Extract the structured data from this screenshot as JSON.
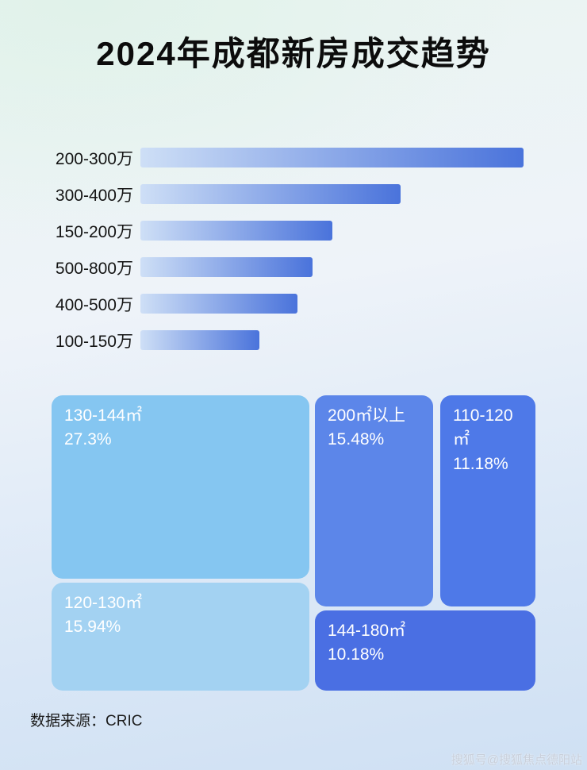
{
  "title": "2024年成都新房成交趋势",
  "footer": {
    "source": "数据来源：CRIC"
  },
  "watermark": "搜狐号@搜狐焦点德阳站",
  "chart_data": [
    {
      "type": "bar",
      "orientation": "horizontal",
      "categories": [
        "200-300万",
        "300-400万",
        "150-200万",
        "500-800万",
        "400-500万",
        "100-150万"
      ],
      "values": [
        100,
        68,
        50,
        45,
        41,
        31
      ],
      "value_scale": "relative bar length, longest bar = 100 (no numeric axis shown)",
      "bar_gradient": {
        "from": "#cedff6",
        "to": "#4a73db"
      },
      "legend": "none",
      "grid": "off"
    },
    {
      "type": "treemap",
      "blocks": [
        {
          "label": "130-144㎡",
          "pct": "27.3%",
          "value": 27.3,
          "color": "#85c6f1"
        },
        {
          "label": "120-130㎡",
          "pct": "15.94%",
          "value": 15.94,
          "color": "#a3d2f2"
        },
        {
          "label": "200㎡以上",
          "pct": "15.48%",
          "value": 15.48,
          "color": "#5c86e9"
        },
        {
          "label": "110-120㎡",
          "pct": "11.18%",
          "value": 11.18,
          "color": "#4e79e8"
        },
        {
          "label": "144-180㎡",
          "pct": "10.18%",
          "value": 10.18,
          "color": "#4a6fe3"
        }
      ]
    }
  ]
}
